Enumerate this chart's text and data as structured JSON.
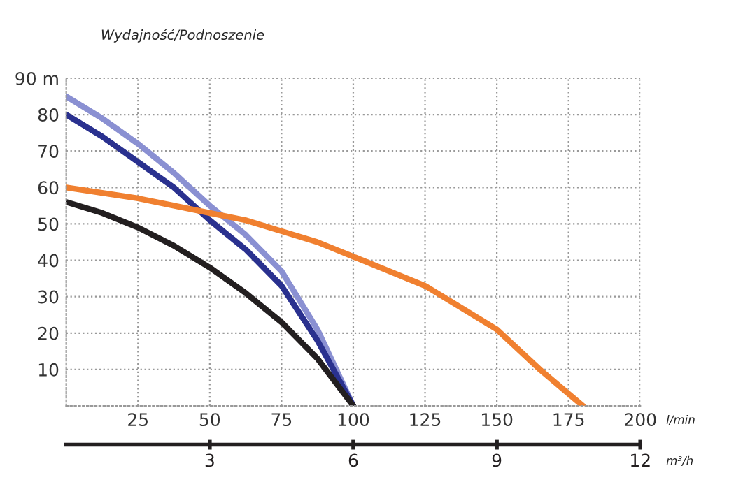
{
  "chart_data": {
    "type": "line",
    "ylabel": "Wydajność/Podnoszenie",
    "xlabel": "l/min",
    "x2label": "m³/h",
    "x": [
      0,
      12.5,
      25,
      37.5,
      50,
      62.5,
      75,
      87.5,
      100,
      112.5,
      125,
      137.5,
      150,
      165,
      180
    ],
    "series": [
      {
        "color": "#8a90d2",
        "values": [
          85,
          79,
          72,
          64,
          55,
          47,
          37,
          21,
          0,
          null,
          null,
          null,
          null,
          null,
          null
        ]
      },
      {
        "color": "#2a318f",
        "values": [
          80,
          74,
          67,
          60,
          51,
          43,
          33,
          18,
          0,
          null,
          null,
          null,
          null,
          null,
          null
        ]
      },
      {
        "color": "#f08030",
        "values": [
          60,
          58.5,
          57,
          55,
          53,
          51,
          48,
          45,
          41,
          37,
          33,
          27,
          21,
          10,
          0
        ]
      },
      {
        "color": "#231f20",
        "values": [
          56,
          53,
          49,
          44,
          38,
          31,
          23,
          13,
          0,
          null,
          null,
          null,
          null,
          null,
          null
        ]
      }
    ],
    "xlim": [
      0,
      200
    ],
    "xticks": [
      25,
      50,
      75,
      100,
      125,
      150,
      175,
      200
    ],
    "ylim": [
      0,
      90
    ],
    "yticks": [
      10,
      20,
      30,
      40,
      50,
      60,
      70,
      80,
      {
        "value": 90,
        "label": "90 m"
      }
    ],
    "x2lim": [
      0,
      12
    ],
    "x2ticks": [
      3,
      6,
      9,
      12
    ],
    "grid": true,
    "marker": "none",
    "line_style": "solid"
  }
}
